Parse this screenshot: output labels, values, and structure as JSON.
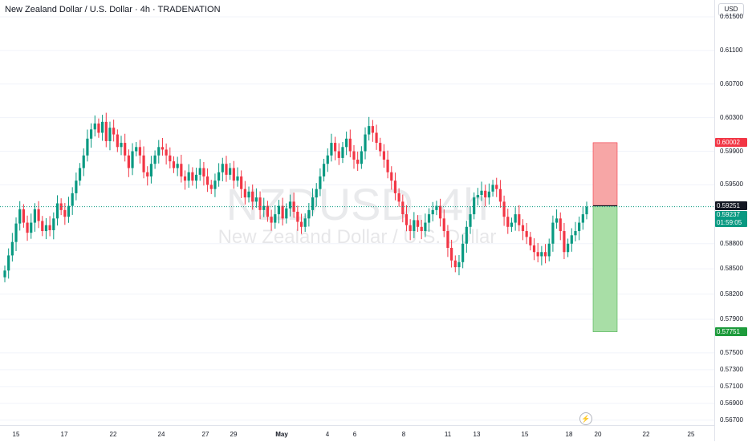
{
  "header": {
    "title": "New Zealand Dollar / U.S. Dollar · 4h · TRADENATION"
  },
  "watermark": {
    "symbol": "NZDUSD, 4h",
    "name": "New Zealand Dollar / U.S. Dollar"
  },
  "price_axis": {
    "currency": "USD",
    "ticks": [
      "0.61500",
      "0.61100",
      "0.60700",
      "0.60300",
      "0.59900",
      "0.59500",
      "0.58800",
      "0.58500",
      "0.58200",
      "0.57900",
      "0.57500",
      "0.57300",
      "0.57100",
      "0.56900",
      "0.56700"
    ],
    "tag_target": "0.60002",
    "tag_current": "0.59251",
    "tag_last": "0.59237",
    "tag_countdown": "01:59:05",
    "tag_stop": "0.57751"
  },
  "time_axis": {
    "labels": [
      "15",
      "17",
      "22",
      "24",
      "27",
      "29",
      "May",
      "4",
      "6",
      "8",
      "11",
      "13",
      "15",
      "18",
      "20",
      "22",
      "25"
    ]
  },
  "colors": {
    "up": "#089981",
    "down": "#f23645",
    "loss_zone": "#f7a6a6",
    "profit_zone": "#a8dea6",
    "grid": "#f0f3fa"
  },
  "icons": {
    "replay": "flash-icon"
  },
  "chart_data": {
    "type": "candlestick",
    "symbol": "NZDUSD",
    "timeframe": "4h",
    "ylim": [
      0.5664,
      0.617
    ],
    "position": {
      "entry": 0.59251,
      "target": 0.60002,
      "stop": 0.57751
    },
    "x_labels": [
      "15",
      "17",
      "22",
      "24",
      "27",
      "29",
      "May",
      "4",
      "6",
      "8",
      "11",
      "13",
      "15",
      "18",
      "20",
      "22",
      "25"
    ],
    "closes": [
      0.5848,
      0.5866,
      0.5882,
      0.5904,
      0.5921,
      0.5905,
      0.5893,
      0.5905,
      0.5921,
      0.5907,
      0.5895,
      0.5902,
      0.5896,
      0.591,
      0.5928,
      0.592,
      0.5912,
      0.5925,
      0.594,
      0.5955,
      0.597,
      0.5985,
      0.6005,
      0.6016,
      0.6023,
      0.6012,
      0.6025,
      0.6002,
      0.6018,
      0.601,
      0.5995,
      0.6,
      0.5985,
      0.597,
      0.599,
      0.5995,
      0.5985,
      0.5965,
      0.596,
      0.5975,
      0.5985,
      0.5995,
      0.5992,
      0.5985,
      0.5978,
      0.597,
      0.5975,
      0.596,
      0.5955,
      0.5965,
      0.5955,
      0.5962,
      0.597,
      0.596,
      0.595,
      0.5945,
      0.5955,
      0.5965,
      0.5975,
      0.5962,
      0.597,
      0.5955,
      0.596,
      0.5945,
      0.5935,
      0.5942,
      0.593,
      0.5935,
      0.592,
      0.5925,
      0.5912,
      0.5905,
      0.5915,
      0.5925,
      0.591,
      0.5922,
      0.593,
      0.5918,
      0.5906,
      0.59,
      0.591,
      0.592,
      0.5935,
      0.5945,
      0.596,
      0.5975,
      0.5985,
      0.6,
      0.599,
      0.5982,
      0.5995,
      0.6005,
      0.599,
      0.598,
      0.5975,
      0.599,
      0.601,
      0.602,
      0.6012,
      0.6,
      0.599,
      0.598,
      0.5965,
      0.5955,
      0.594,
      0.593,
      0.5915,
      0.5902,
      0.5895,
      0.5908,
      0.59,
      0.5895,
      0.5905,
      0.5915,
      0.592,
      0.5925,
      0.591,
      0.5895,
      0.5875,
      0.586,
      0.5852,
      0.5858,
      0.588,
      0.59,
      0.5915,
      0.5935,
      0.5938,
      0.5943,
      0.5935,
      0.5942,
      0.595,
      0.5945,
      0.593,
      0.5912,
      0.59,
      0.5905,
      0.5915,
      0.5902,
      0.5895,
      0.5888,
      0.5878,
      0.587,
      0.5865,
      0.587,
      0.5865,
      0.588,
      0.5905,
      0.591,
      0.5895,
      0.587,
      0.588,
      0.589,
      0.5895,
      0.5905,
      0.5915,
      0.5924
    ]
  }
}
